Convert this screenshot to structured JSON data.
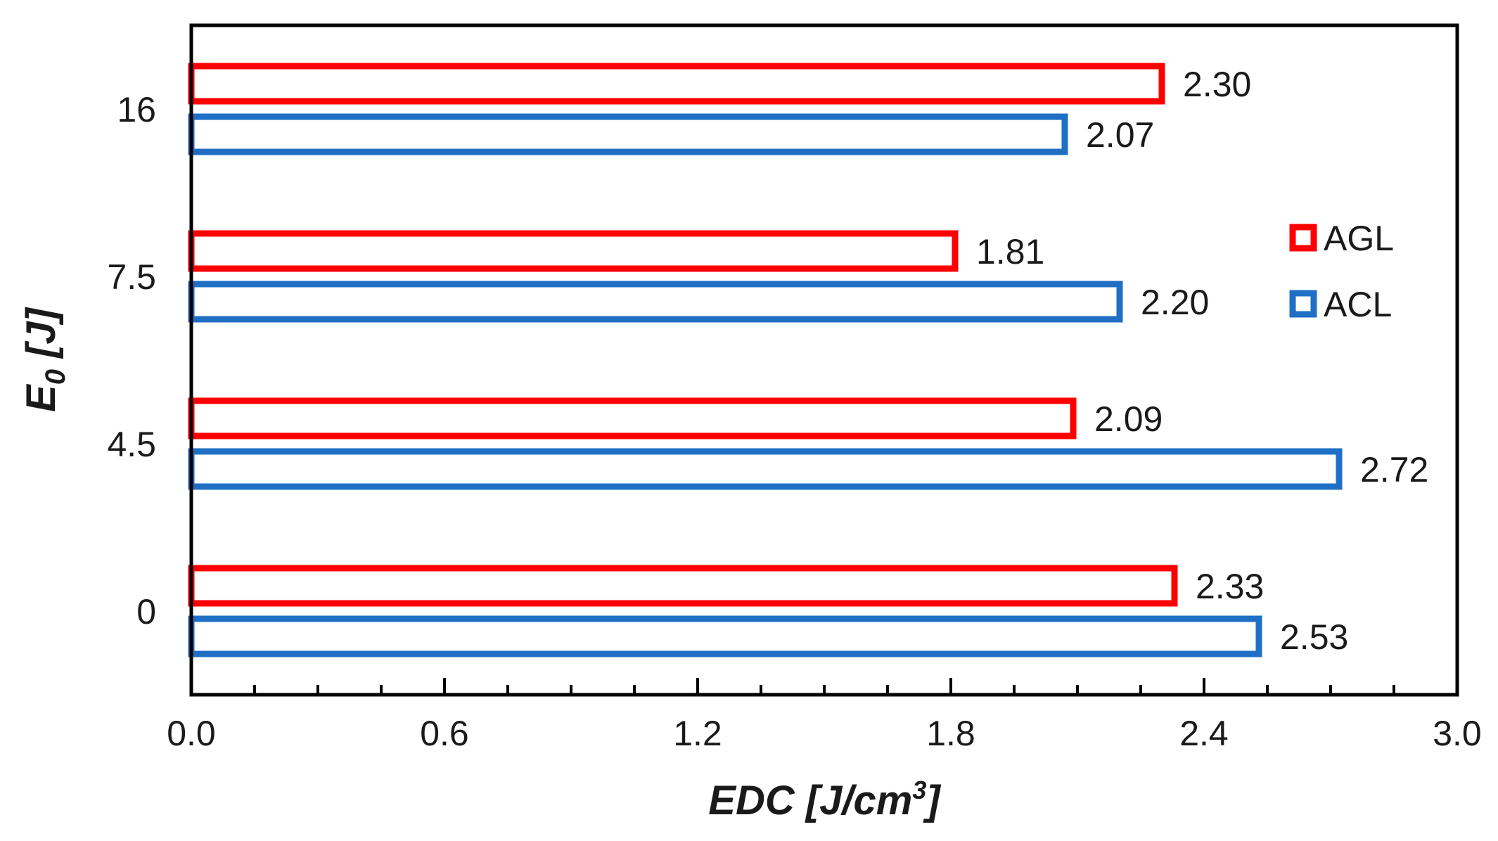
{
  "chart_data": {
    "type": "bar",
    "orientation": "horizontal",
    "categories": [
      "16",
      "7.5",
      "4.5",
      "0"
    ],
    "series": [
      {
        "name": "AGL",
        "color": "#ff0000",
        "fill": "none",
        "values": [
          2.3,
          1.81,
          2.09,
          2.33
        ],
        "labels": [
          "2.30",
          "1.81",
          "2.09",
          "2.33"
        ]
      },
      {
        "name": "ACL",
        "color": "#1f6fc5",
        "fill": "none",
        "values": [
          2.07,
          2.2,
          2.72,
          2.53
        ],
        "labels": [
          "2.07",
          "2.20",
          "2.72",
          "2.53"
        ]
      }
    ],
    "xlabel": {
      "main": "EDC [J/cm",
      "sup": "3",
      "tail": "]"
    },
    "ylabel": {
      "main": "E",
      "sub": "0",
      "tail": " [J]"
    },
    "xlim": [
      0,
      3.0
    ],
    "xticks": [
      "0.0",
      "0.6",
      "1.2",
      "1.8",
      "2.4",
      "3.0"
    ],
    "grid": false,
    "legend_position": "right"
  }
}
